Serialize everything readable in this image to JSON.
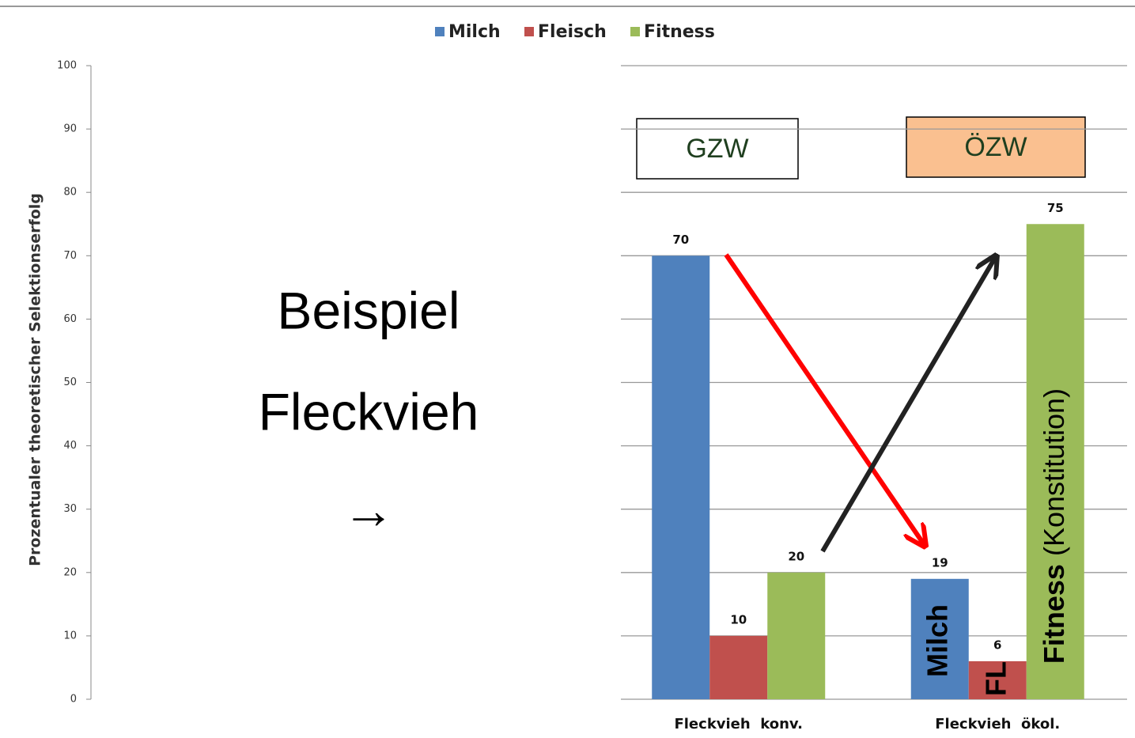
{
  "chart_data": {
    "type": "bar",
    "ylabel": "Prozentualer theoretischer Selektionserfolg",
    "categories": [
      "Fleckvieh  konv.",
      "Fleckvieh  ökol."
    ],
    "series": [
      {
        "name": "Milch",
        "color": "#4f81bd",
        "values": [
          70,
          19
        ]
      },
      {
        "name": "Fleisch",
        "color": "#c0504d",
        "values": [
          10,
          6
        ]
      },
      {
        "name": "Fitness",
        "color": "#9bbb59",
        "values": [
          20,
          75
        ]
      }
    ],
    "ylim": [
      0,
      100
    ],
    "yticks": [
      0,
      10,
      20,
      30,
      40,
      50,
      60,
      70,
      80,
      90,
      100
    ],
    "grid": true,
    "legend": "top",
    "annotations": {
      "example_1": "Beispiel",
      "example_2": "Fleckvieh",
      "arrow": "→",
      "box_left": "GZW",
      "box_right": "ÖZW",
      "bar_milch": "Milch",
      "bar_fl": "FL",
      "bar_fitness": "Fitness",
      "bar_fitness_note": "(Konstitution)"
    }
  }
}
